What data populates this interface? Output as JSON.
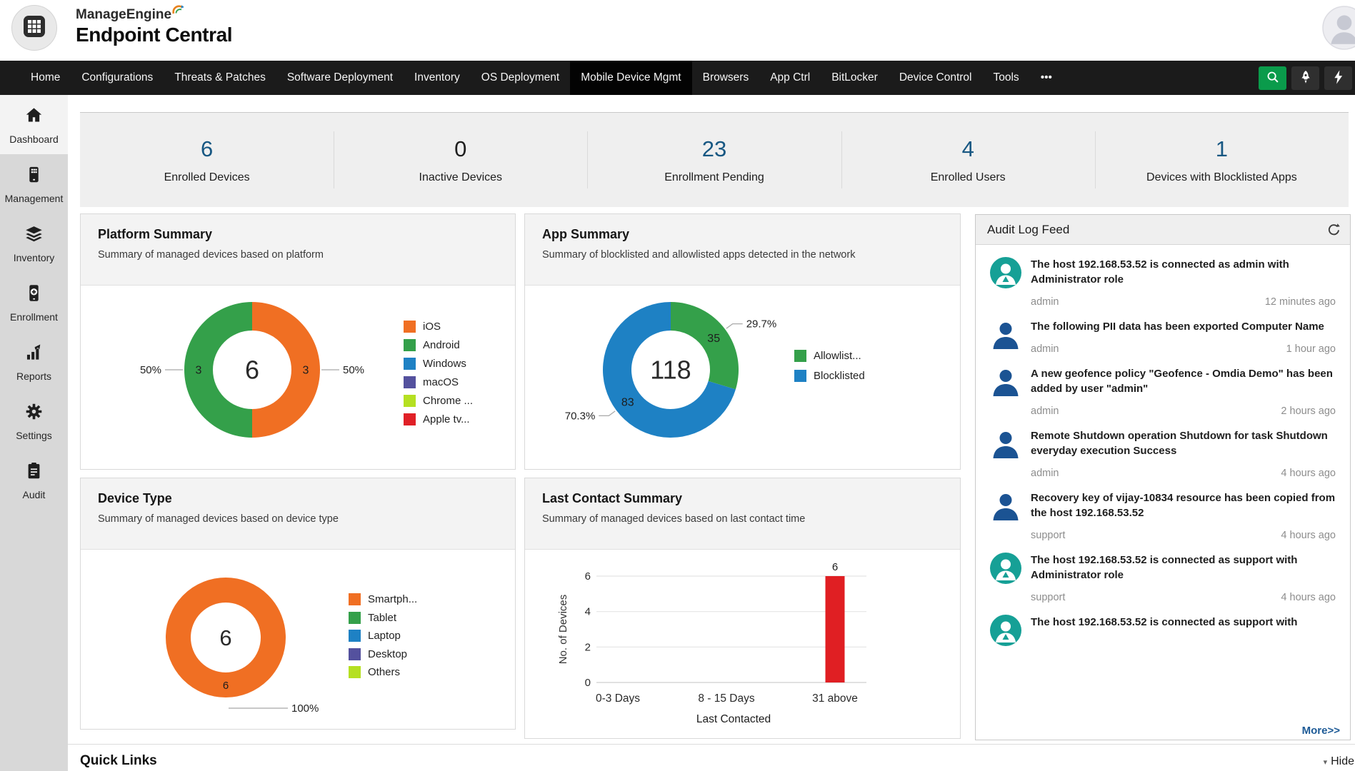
{
  "header": {
    "brand_top": "ManageEngine",
    "brand_bottom": "Endpoint Central"
  },
  "nav": {
    "items": [
      "Home",
      "Configurations",
      "Threats & Patches",
      "Software Deployment",
      "Inventory",
      "OS Deployment",
      "Mobile Device Mgmt",
      "Browsers",
      "App Ctrl",
      "BitLocker",
      "Device Control",
      "Tools",
      "•••"
    ],
    "active": "Mobile Device Mgmt"
  },
  "sidebar": {
    "items": [
      {
        "label": "Dashboard",
        "icon": "home-icon",
        "active": true
      },
      {
        "label": "Management",
        "icon": "mobile-icon",
        "active": false
      },
      {
        "label": "Inventory",
        "icon": "layers-icon",
        "active": false
      },
      {
        "label": "Enrollment",
        "icon": "enroll-icon",
        "active": false
      },
      {
        "label": "Reports",
        "icon": "bar-chart-icon",
        "active": false
      },
      {
        "label": "Settings",
        "icon": "gear-icon",
        "active": false
      },
      {
        "label": "Audit",
        "icon": "clipboard-icon",
        "active": false
      }
    ]
  },
  "stats": [
    {
      "value": "6",
      "label": "Enrolled Devices",
      "color": "#175782"
    },
    {
      "value": "0",
      "label": "Inactive Devices",
      "color": "#1f1f1f"
    },
    {
      "value": "23",
      "label": "Enrollment Pending",
      "color": "#175782"
    },
    {
      "value": "4",
      "label": "Enrolled Users",
      "color": "#175782"
    },
    {
      "value": "1",
      "label": "Devices with Blocklisted Apps",
      "color": "#175782"
    }
  ],
  "cards": {
    "platform": {
      "title": "Platform Summary",
      "subtitle": "Summary of managed devices based on platform"
    },
    "apps": {
      "title": "App Summary",
      "subtitle": "Summary of blocklisted and allowlisted apps detected in the network"
    },
    "device": {
      "title": "Device Type",
      "subtitle": "Summary of managed devices based on device type"
    },
    "contact": {
      "title": "Last Contact Summary",
      "subtitle": "Summary of managed devices based on last contact time"
    }
  },
  "chart_data": [
    {
      "id": "platform",
      "type": "pie",
      "title": "Platform Summary",
      "center_label": "6",
      "slices": [
        {
          "label": "iOS",
          "value": 3,
          "pct": "50%",
          "color": "#f06f23"
        },
        {
          "label": "Android",
          "value": 3,
          "pct": "50%",
          "color": "#34a04a"
        }
      ],
      "legend": [
        {
          "label": "iOS",
          "color": "#f06f23"
        },
        {
          "label": "Android",
          "color": "#34a04a"
        },
        {
          "label": "Windows",
          "color": "#1e81c4"
        },
        {
          "label": "macOS",
          "color": "#54519e"
        },
        {
          "label": "Chrome ...",
          "color": "#b5e022"
        },
        {
          "label": "Apple tv...",
          "color": "#e02027"
        }
      ],
      "legend_position": "right"
    },
    {
      "id": "apps",
      "type": "pie",
      "title": "App Summary",
      "center_label": "118",
      "slices": [
        {
          "label": "Allowlist...",
          "value": 35,
          "pct": "29.7%",
          "color": "#34a04a"
        },
        {
          "label": "Blocklisted",
          "value": 83,
          "pct": "70.3%",
          "color": "#1e81c4"
        }
      ],
      "legend": [
        {
          "label": "Allowlist...",
          "color": "#34a04a"
        },
        {
          "label": "Blocklisted",
          "color": "#1e81c4"
        }
      ],
      "legend_position": "right"
    },
    {
      "id": "device_type",
      "type": "pie",
      "title": "Device Type",
      "center_label": "6",
      "slices": [
        {
          "label": "Smartph...",
          "value": 6,
          "pct": "100%",
          "color": "#f06f23"
        }
      ],
      "legend": [
        {
          "label": "Smartph...",
          "color": "#f06f23"
        },
        {
          "label": "Tablet",
          "color": "#34a04a"
        },
        {
          "label": "Laptop",
          "color": "#1e81c4"
        },
        {
          "label": "Desktop",
          "color": "#54519e"
        },
        {
          "label": "Others",
          "color": "#b5e022"
        }
      ],
      "legend_position": "right"
    },
    {
      "id": "last_contact",
      "type": "bar",
      "title": "Last Contact Summary",
      "categories": [
        "0-3 Days",
        "8 - 15 Days",
        "31 above"
      ],
      "values": [
        0,
        0,
        6
      ],
      "bar_color": "#e01f23",
      "ylabel": "No. of Devices",
      "xlabel": "Last Contacted",
      "yticks": [
        0,
        2,
        4,
        6
      ],
      "ylim": [
        0,
        6
      ],
      "grid": true
    }
  ],
  "audit": {
    "title": "Audit Log Feed",
    "more_label": "More>>",
    "entries": [
      {
        "icon": "admin-avatar",
        "text": "The host 192.168.53.52 is connected as admin with Administrator role",
        "user": "admin",
        "time": "12 minutes ago"
      },
      {
        "icon": "user-avatar",
        "text": "The following PII data has been exported Computer Name",
        "user": "admin",
        "time": "1 hour ago"
      },
      {
        "icon": "user-avatar",
        "text": "A new geofence policy \"Geofence - Omdia Demo\" has been added by user \"admin\"",
        "user": "admin",
        "time": "2 hours ago"
      },
      {
        "icon": "user-avatar",
        "text": "Remote Shutdown operation Shutdown for task Shutdown everyday execution Success",
        "user": "admin",
        "time": "4 hours ago"
      },
      {
        "icon": "user-avatar",
        "text": "Recovery key of vijay-10834 resource has been copied from the host 192.168.53.52",
        "user": "support",
        "time": "4 hours ago"
      },
      {
        "icon": "admin-avatar",
        "text": "The host 192.168.53.52 is connected as support with Administrator role",
        "user": "support",
        "time": "4 hours ago"
      },
      {
        "icon": "admin-avatar",
        "text": "The host 192.168.53.52 is connected as support with",
        "user": "",
        "time": ""
      }
    ]
  },
  "footer": {
    "quick_links": "Quick Links",
    "hide_label": "Hide"
  }
}
